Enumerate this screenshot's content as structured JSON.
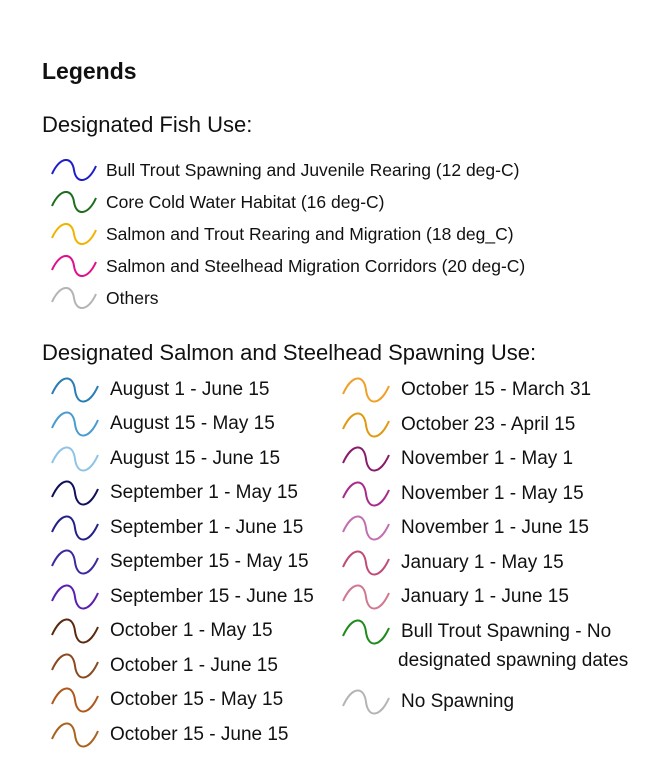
{
  "title": "Legends",
  "fish_use": {
    "heading": "Designated Fish Use:",
    "items": [
      {
        "label": "Bull Trout Spawning and Juvenile Rearing (12 deg-C)",
        "color": "#1f1fc8",
        "icon": "wave-line-icon"
      },
      {
        "label": "Core Cold Water Habitat (16 deg-C)",
        "color": "#1e6e1e",
        "icon": "wave-line-icon"
      },
      {
        "label": "Salmon and Trout Rearing and Migration (18 deg_C)",
        "color": "#f0b400",
        "icon": "wave-line-icon"
      },
      {
        "label": "Salmon and Steelhead Migration Corridors (20 deg-C)",
        "color": "#e0108c",
        "icon": "wave-line-icon"
      },
      {
        "label": "Others",
        "color": "#b4b4b4",
        "icon": "wave-line-icon"
      }
    ]
  },
  "spawning_use": {
    "heading": "Designated Salmon and Steelhead Spawning Use:",
    "left_column": [
      {
        "label": "August 1 - June 15",
        "color": "#2a7db4"
      },
      {
        "label": "August 15 - May 15",
        "color": "#4a9bd0"
      },
      {
        "label": "August 15 - June 15",
        "color": "#8fc4e6"
      },
      {
        "label": "September 1 - May 15",
        "color": "#10105a"
      },
      {
        "label": "September 1 - June 15",
        "color": "#24208a"
      },
      {
        "label": "September 15 - May 15",
        "color": "#3a2a9e"
      },
      {
        "label": "September 15 - June 15",
        "color": "#5a1eb0"
      },
      {
        "label": "October 1 - May 15",
        "color": "#5a2a10"
      },
      {
        "label": "October 1 - June 15",
        "color": "#8a4a20"
      },
      {
        "label": "October 15 - May 15",
        "color": "#b0581c"
      },
      {
        "label": "October 15 - June 15",
        "color": "#a8641e"
      }
    ],
    "right_column": [
      {
        "label": "October 15 - March 31",
        "color": "#f0a028"
      },
      {
        "label": "October 23 - April 15",
        "color": "#e09a10"
      },
      {
        "label": "November 1 - May 1",
        "color": "#8a1a6a"
      },
      {
        "label": "November 1 - May 15",
        "color": "#a82a8a"
      },
      {
        "label": "November 1 - June 15",
        "color": "#c070b0"
      },
      {
        "label": "January 1 - May 15",
        "color": "#c04a78"
      },
      {
        "label": "January 1 - June 15",
        "color": "#d07890"
      },
      {
        "label": "Bull Trout Spawning - No designated spawning dates",
        "color": "#1e8a1e",
        "line1": "Bull Trout Spawning - No",
        "line2": "designated spawning dates"
      },
      {
        "label": "No Spawning",
        "color": "#b4b4b4"
      }
    ]
  }
}
